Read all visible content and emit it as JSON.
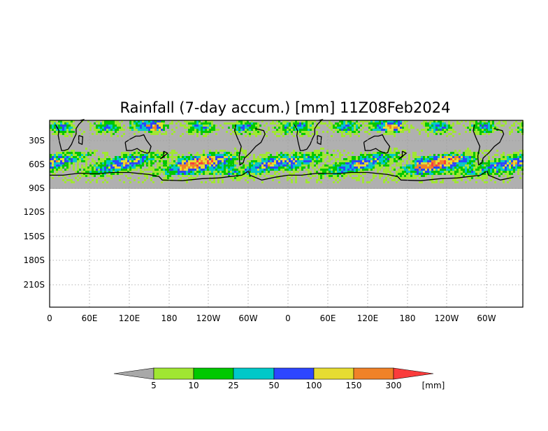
{
  "title": "Rainfall (7-day accum.) [mm] 11Z08Feb2024",
  "map": {
    "y_tick_labels": [
      "30S",
      "60S",
      "90S",
      "120S",
      "150S",
      "180S",
      "210S"
    ],
    "x_tick_labels": [
      "0",
      "60E",
      "120E",
      "180",
      "120W",
      "60W",
      "0",
      "60E",
      "120E",
      "180",
      "120W",
      "60W"
    ],
    "grid": "dotted",
    "mask_color": "#b0b0b0",
    "data_rows_visible": "approximately 10N to 90S, repeated over two longitude cycles"
  },
  "colorbar": {
    "unit_label": "[mm]",
    "tick_labels": [
      "5",
      "10",
      "25",
      "50",
      "100",
      "150",
      "300"
    ],
    "colors": {
      "below": "#a8a8a8",
      "bins": [
        "#a0e632",
        "#00c800",
        "#00c8c8",
        "#2d46ff",
        "#e6dc32",
        "#f08228",
        "#fa3c3c"
      ]
    }
  },
  "legend_color_names": [
    "gray-below-5",
    "light-green",
    "green",
    "cyan",
    "blue",
    "yellow",
    "orange",
    "red-above-300"
  ]
}
